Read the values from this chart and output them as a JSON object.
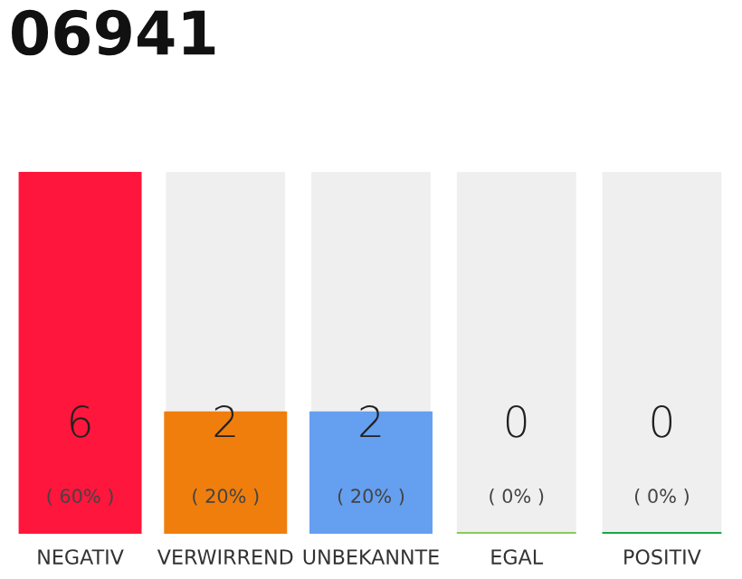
{
  "chart_data": {
    "type": "bar",
    "title": "06941",
    "categories": [
      "NEGATIV",
      "VERWIRREND",
      "UNBEKANNTE",
      "EGAL",
      "POSITIV"
    ],
    "values": [
      6,
      2,
      2,
      0,
      0
    ],
    "colors": [
      "#ff163c",
      "#f07e0d",
      "#659ff0",
      "#8bc959",
      "#1aa54a"
    ],
    "grid": false,
    "tick_labels": "x",
    "value_labels": [
      "6\n( 60% )",
      "2\n( 20% )",
      "2\n( 20% )",
      "0\n( 0% )",
      "0\n( 0% )"
    ]
  }
}
